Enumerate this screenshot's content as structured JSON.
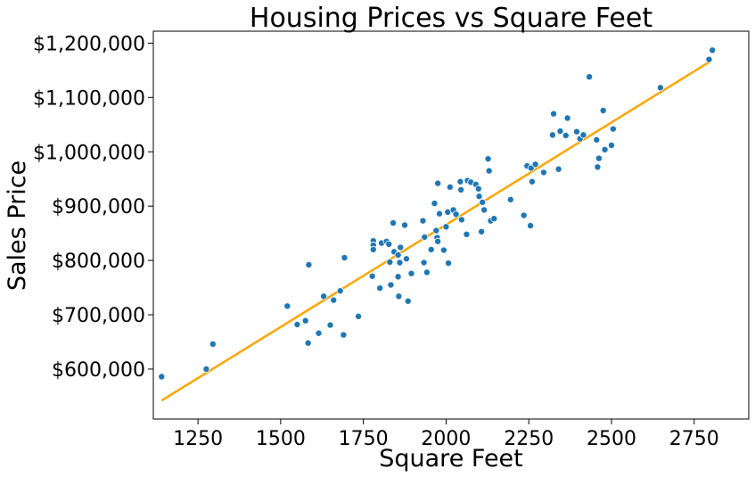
{
  "chart_data": {
    "type": "scatter",
    "title": "Housing Prices vs Square Feet",
    "xlabel": "Square Feet",
    "ylabel": "Sales Price",
    "xlim": [
      1115,
      2915
    ],
    "ylim": [
      508000,
      1222000
    ],
    "x_ticks": [
      1250,
      1500,
      1750,
      2000,
      2250,
      2500,
      2750
    ],
    "x_tick_labels": [
      "1250",
      "1500",
      "1750",
      "2000",
      "2250",
      "2500",
      "2750"
    ],
    "y_ticks": [
      600000,
      700000,
      800000,
      900000,
      1000000,
      1100000,
      1200000
    ],
    "y_tick_labels": [
      "$600,000",
      "$700,000",
      "$800,000",
      "$900,000",
      "$1,000,000",
      "$1,100,000",
      "$1,200,000"
    ],
    "grid": false,
    "legend": "none",
    "point_color": "#1f77b4",
    "line_color": "#ffa500",
    "trendline": {
      "x": [
        1140,
        2800
      ],
      "y": [
        542000,
        1167000
      ]
    },
    "points": [
      {
        "x": 1140,
        "y": 586000
      },
      {
        "x": 1275,
        "y": 600000
      },
      {
        "x": 1295,
        "y": 646000
      },
      {
        "x": 1520,
        "y": 716000
      },
      {
        "x": 1550,
        "y": 682000
      },
      {
        "x": 1575,
        "y": 689000
      },
      {
        "x": 1585,
        "y": 792000
      },
      {
        "x": 1583,
        "y": 648000
      },
      {
        "x": 1615,
        "y": 666000
      },
      {
        "x": 1630,
        "y": 734000
      },
      {
        "x": 1650,
        "y": 681000
      },
      {
        "x": 1660,
        "y": 727000
      },
      {
        "x": 1680,
        "y": 744000
      },
      {
        "x": 1690,
        "y": 663000
      },
      {
        "x": 1693,
        "y": 805000
      },
      {
        "x": 1735,
        "y": 697000
      },
      {
        "x": 1777,
        "y": 771000
      },
      {
        "x": 1780,
        "y": 836000
      },
      {
        "x": 1780,
        "y": 828000
      },
      {
        "x": 1780,
        "y": 820000
      },
      {
        "x": 1800,
        "y": 749000
      },
      {
        "x": 1805,
        "y": 832000
      },
      {
        "x": 1820,
        "y": 835000
      },
      {
        "x": 1827,
        "y": 830000
      },
      {
        "x": 1830,
        "y": 797000
      },
      {
        "x": 1833,
        "y": 755000
      },
      {
        "x": 1840,
        "y": 869000
      },
      {
        "x": 1843,
        "y": 816000
      },
      {
        "x": 1855,
        "y": 810000
      },
      {
        "x": 1855,
        "y": 770000
      },
      {
        "x": 1857,
        "y": 734000
      },
      {
        "x": 1860,
        "y": 796000
      },
      {
        "x": 1862,
        "y": 824000
      },
      {
        "x": 1875,
        "y": 865000
      },
      {
        "x": 1880,
        "y": 803000
      },
      {
        "x": 1885,
        "y": 725000
      },
      {
        "x": 1895,
        "y": 776000
      },
      {
        "x": 1930,
        "y": 873000
      },
      {
        "x": 1933,
        "y": 796000
      },
      {
        "x": 1935,
        "y": 843000
      },
      {
        "x": 1942,
        "y": 778000
      },
      {
        "x": 1955,
        "y": 820000
      },
      {
        "x": 1965,
        "y": 905000
      },
      {
        "x": 1970,
        "y": 855000
      },
      {
        "x": 1973,
        "y": 842000
      },
      {
        "x": 1975,
        "y": 835000
      },
      {
        "x": 1975,
        "y": 942000
      },
      {
        "x": 1980,
        "y": 886000
      },
      {
        "x": 1993,
        "y": 819000
      },
      {
        "x": 2000,
        "y": 862000
      },
      {
        "x": 2005,
        "y": 889000
      },
      {
        "x": 2007,
        "y": 795000
      },
      {
        "x": 2012,
        "y": 935000
      },
      {
        "x": 2022,
        "y": 893000
      },
      {
        "x": 2030,
        "y": 885000
      },
      {
        "x": 2043,
        "y": 945000
      },
      {
        "x": 2045,
        "y": 930000
      },
      {
        "x": 2047,
        "y": 875000
      },
      {
        "x": 2062,
        "y": 848000
      },
      {
        "x": 2065,
        "y": 947000
      },
      {
        "x": 2075,
        "y": 944000
      },
      {
        "x": 2090,
        "y": 940000
      },
      {
        "x": 2098,
        "y": 932000
      },
      {
        "x": 2100,
        "y": 918000
      },
      {
        "x": 2107,
        "y": 853000
      },
      {
        "x": 2110,
        "y": 907000
      },
      {
        "x": 2115,
        "y": 893000
      },
      {
        "x": 2127,
        "y": 987000
      },
      {
        "x": 2130,
        "y": 965000
      },
      {
        "x": 2135,
        "y": 873000
      },
      {
        "x": 2145,
        "y": 877000
      },
      {
        "x": 2195,
        "y": 912000
      },
      {
        "x": 2235,
        "y": 883000
      },
      {
        "x": 2245,
        "y": 974000
      },
      {
        "x": 2255,
        "y": 864000
      },
      {
        "x": 2257,
        "y": 970000
      },
      {
        "x": 2260,
        "y": 945000
      },
      {
        "x": 2270,
        "y": 977000
      },
      {
        "x": 2295,
        "y": 962000
      },
      {
        "x": 2322,
        "y": 1031000
      },
      {
        "x": 2325,
        "y": 1070000
      },
      {
        "x": 2340,
        "y": 968000
      },
      {
        "x": 2345,
        "y": 1038000
      },
      {
        "x": 2362,
        "y": 1030000
      },
      {
        "x": 2367,
        "y": 1062000
      },
      {
        "x": 2395,
        "y": 1037000
      },
      {
        "x": 2405,
        "y": 1024000
      },
      {
        "x": 2415,
        "y": 1031000
      },
      {
        "x": 2433,
        "y": 1138000
      },
      {
        "x": 2455,
        "y": 1022000
      },
      {
        "x": 2458,
        "y": 972000
      },
      {
        "x": 2462,
        "y": 988000
      },
      {
        "x": 2475,
        "y": 1076000
      },
      {
        "x": 2480,
        "y": 1004000
      },
      {
        "x": 2500,
        "y": 1012000
      },
      {
        "x": 2505,
        "y": 1042000
      },
      {
        "x": 2648,
        "y": 1118000
      },
      {
        "x": 2795,
        "y": 1170000
      },
      {
        "x": 2805,
        "y": 1187000
      }
    ]
  }
}
